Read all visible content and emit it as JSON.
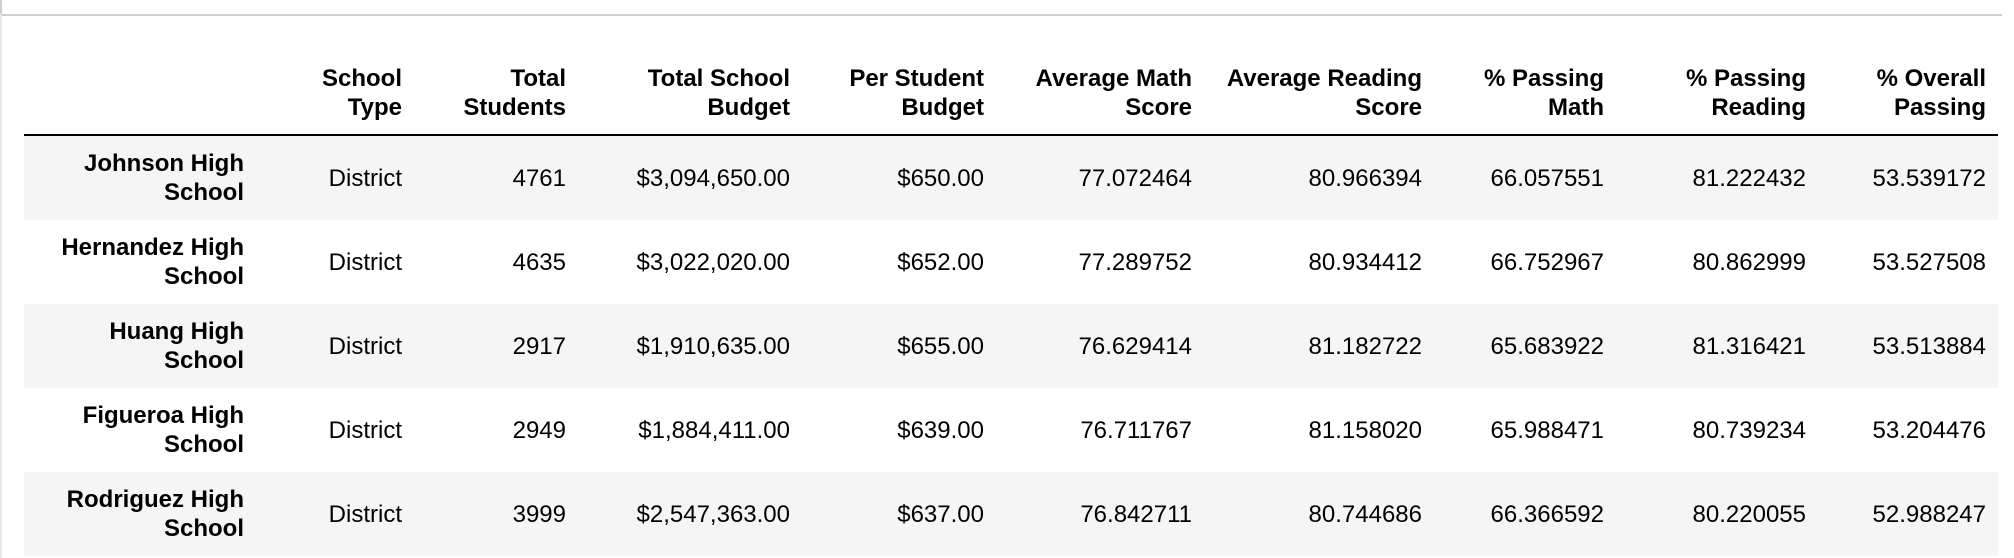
{
  "table": {
    "columns": [
      "",
      "School Type",
      "Total Students",
      "Total School Budget",
      "Per Student Budget",
      "Average Math Score",
      "Average Reading Score",
      "% Passing Math",
      "% Passing Reading",
      "% Overall Passing"
    ],
    "rows": [
      {
        "index": "Johnson High School",
        "cells": [
          "District",
          "4761",
          "$3,094,650.00",
          "$650.00",
          "77.072464",
          "80.966394",
          "66.057551",
          "81.222432",
          "53.539172"
        ]
      },
      {
        "index": "Hernandez High School",
        "cells": [
          "District",
          "4635",
          "$3,022,020.00",
          "$652.00",
          "77.289752",
          "80.934412",
          "66.752967",
          "80.862999",
          "53.527508"
        ]
      },
      {
        "index": "Huang High School",
        "cells": [
          "District",
          "2917",
          "$1,910,635.00",
          "$655.00",
          "76.629414",
          "81.182722",
          "65.683922",
          "81.316421",
          "53.513884"
        ]
      },
      {
        "index": "Figueroa High School",
        "cells": [
          "District",
          "2949",
          "$1,884,411.00",
          "$639.00",
          "76.711767",
          "81.158020",
          "65.988471",
          "80.739234",
          "53.204476"
        ]
      },
      {
        "index": "Rodriguez High School",
        "cells": [
          "District",
          "3999",
          "$2,547,363.00",
          "$637.00",
          "76.842711",
          "80.744686",
          "66.366592",
          "80.220055",
          "52.988247"
        ]
      }
    ]
  }
}
